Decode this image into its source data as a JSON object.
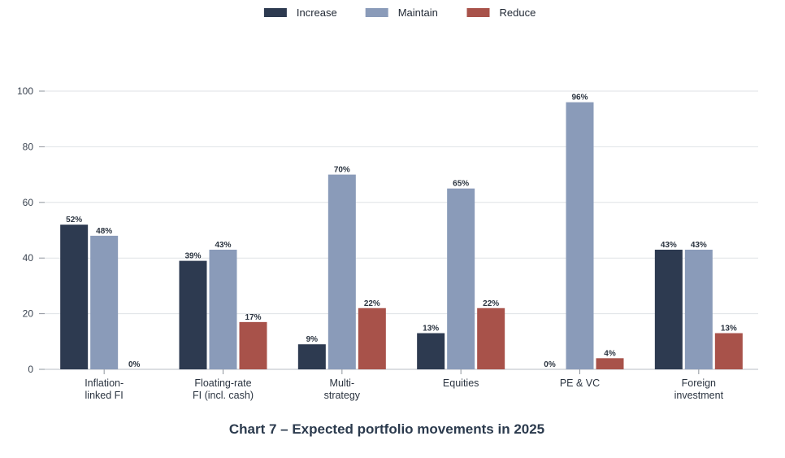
{
  "chart_data": {
    "type": "bar",
    "title": "Chart 7 – Expected portfolio movements in 2025",
    "categories": [
      [
        "Inflation-",
        "linked FI"
      ],
      [
        "Floating-rate",
        "FI (incl. cash)"
      ],
      [
        "Multi-",
        "strategy"
      ],
      [
        "Equities"
      ],
      [
        "PE & VC"
      ],
      [
        "Foreign",
        "investment"
      ]
    ],
    "series": [
      {
        "name": "Increase",
        "color": "#2d3a50",
        "values": [
          52,
          39,
          9,
          13,
          0,
          43
        ],
        "labels": [
          "52%",
          "39%",
          "9%",
          "13%",
          "0%",
          "43%"
        ]
      },
      {
        "name": "Maintain",
        "color": "#8a9bb9",
        "values": [
          48,
          43,
          70,
          65,
          96,
          43
        ],
        "labels": [
          "48%",
          "43%",
          "70%",
          "65%",
          "96%",
          "43%"
        ]
      },
      {
        "name": "Reduce",
        "color": "#a8524a",
        "values": [
          0,
          17,
          22,
          22,
          4,
          13
        ],
        "labels": [
          "0%",
          "17%",
          "22%",
          "22%",
          "4%",
          "13%"
        ]
      }
    ],
    "ylim": [
      0,
      100
    ],
    "yticks": [
      0,
      20,
      40,
      60,
      80,
      100
    ],
    "ytick_labels": [
      "0",
      "20",
      "40",
      "60",
      "80",
      "100"
    ],
    "grid": true,
    "legend_position": "top-center"
  }
}
